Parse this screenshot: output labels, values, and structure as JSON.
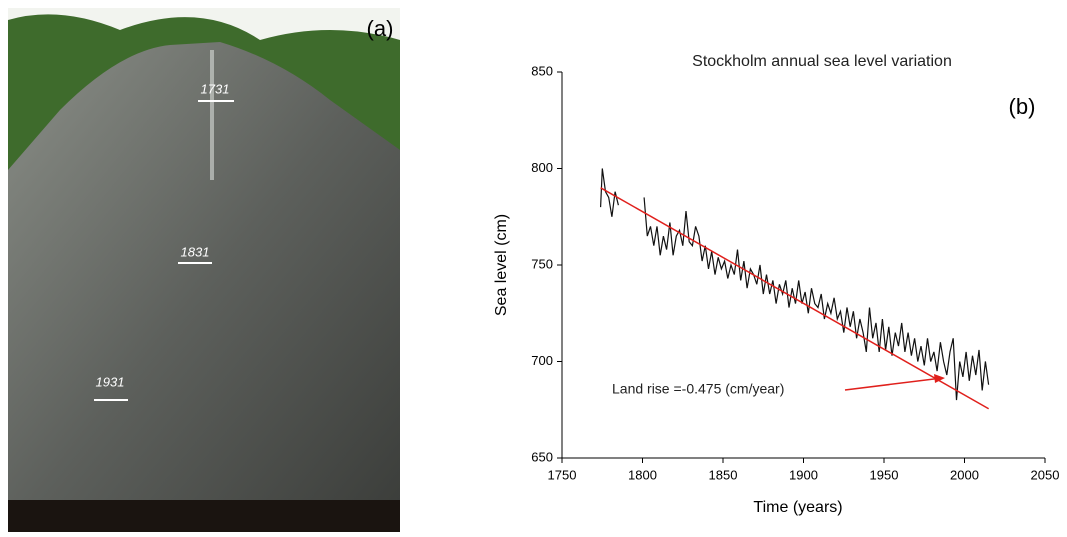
{
  "photo": {
    "label": "(a)",
    "inscriptions": [
      "1731",
      "1831",
      "1931"
    ]
  },
  "chart_data": {
    "type": "line",
    "title": "Stockholm annual sea level variation",
    "panel_label": "(b)",
    "x_label": "Time (years)",
    "y_label": "Sea level (cm)",
    "annotation": "Land rise =-0.475 (cm/year)",
    "xlim": [
      1750,
      2050
    ],
    "xticks": [
      1750,
      1800,
      1850,
      1900,
      1950,
      2000,
      2050
    ],
    "ylim": [
      650,
      850
    ],
    "yticks": [
      650,
      700,
      750,
      800,
      850
    ],
    "grid": false,
    "x": [
      1774,
      1775,
      1777,
      1779,
      1781,
      1783,
      1785,
      1790,
      1801,
      1803,
      1805,
      1807,
      1809,
      1811,
      1813,
      1815,
      1817,
      1819,
      1821,
      1823,
      1825,
      1827,
      1829,
      1831,
      1833,
      1835,
      1837,
      1839,
      1841,
      1843,
      1845,
      1847,
      1849,
      1851,
      1853,
      1855,
      1857,
      1859,
      1861,
      1863,
      1865,
      1867,
      1869,
      1871,
      1873,
      1875,
      1877,
      1879,
      1881,
      1883,
      1885,
      1887,
      1889,
      1891,
      1893,
      1895,
      1897,
      1899,
      1901,
      1903,
      1905,
      1907,
      1909,
      1911,
      1913,
      1915,
      1917,
      1919,
      1921,
      1923,
      1925,
      1927,
      1929,
      1931,
      1933,
      1935,
      1937,
      1939,
      1941,
      1943,
      1945,
      1947,
      1949,
      1951,
      1953,
      1955,
      1957,
      1959,
      1961,
      1963,
      1965,
      1967,
      1969,
      1971,
      1973,
      1975,
      1977,
      1979,
      1981,
      1983,
      1985,
      1987,
      1989,
      1991,
      1993,
      1995,
      1997,
      1999,
      2001,
      2003,
      2005,
      2007,
      2009,
      2011,
      2013,
      2015
    ],
    "series": [
      {
        "color": "#111111",
        "values": [
          780,
          800,
          788,
          785,
          775,
          788,
          781,
          null,
          785,
          765,
          770,
          760,
          770,
          755,
          765,
          758,
          772,
          755,
          765,
          768,
          760,
          778,
          762,
          760,
          770,
          765,
          752,
          760,
          748,
          757,
          745,
          754,
          748,
          752,
          743,
          750,
          745,
          758,
          742,
          752,
          738,
          748,
          745,
          740,
          750,
          735,
          745,
          735,
          742,
          730,
          740,
          735,
          742,
          728,
          738,
          730,
          742,
          730,
          736,
          725,
          738,
          730,
          728,
          735,
          722,
          730,
          725,
          733,
          722,
          726,
          715,
          728,
          718,
          726,
          712,
          722,
          715,
          705,
          728,
          712,
          720,
          705,
          722,
          706,
          718,
          703,
          715,
          708,
          720,
          705,
          715,
          703,
          712,
          700,
          708,
          698,
          712,
          700,
          705,
          695,
          710,
          700,
          693,
          705,
          712,
          680,
          700,
          692,
          705,
          690,
          703,
          693,
          706,
          685,
          700,
          688
        ]
      }
    ],
    "trend_line": {
      "color": "#e0201c",
      "x": [
        1774,
        2015
      ],
      "values": [
        790,
        675.5
      ]
    }
  }
}
